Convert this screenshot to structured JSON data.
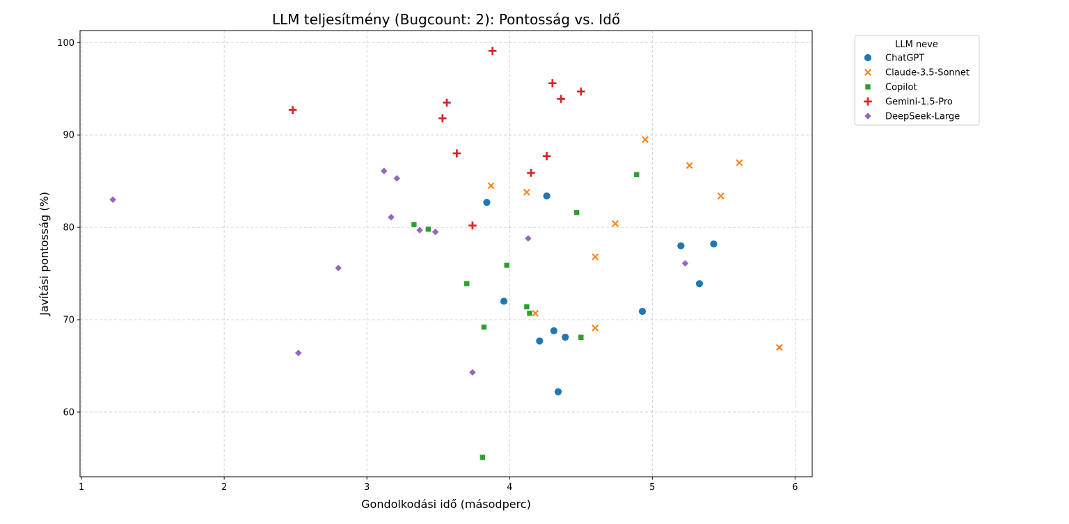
{
  "chart_data": {
    "type": "scatter",
    "title": "LLM teljesítmény (Bugcount: 2): Pontosság vs. Idő",
    "xlabel": "Gondolkodási idő (másodperc)",
    "ylabel": "Javítási pontosság (%)",
    "xlim": [
      0.99,
      6.12
    ],
    "ylim": [
      53.0,
      101.3
    ],
    "xticks": [
      1,
      2,
      3,
      4,
      5,
      6
    ],
    "yticks": [
      60,
      70,
      80,
      90,
      100
    ],
    "grid": true,
    "legend": {
      "title": "LLM neve",
      "placement": "outside top-right"
    },
    "series": [
      {
        "name": "ChatGPT",
        "marker": "circle",
        "color": "#1f77b4",
        "points": [
          [
            3.84,
            82.7
          ],
          [
            4.26,
            83.4
          ],
          [
            3.96,
            72.0
          ],
          [
            4.21,
            67.7
          ],
          [
            4.31,
            68.8
          ],
          [
            4.39,
            68.1
          ],
          [
            4.34,
            62.2
          ],
          [
            4.93,
            70.9
          ],
          [
            5.2,
            78.0
          ],
          [
            5.43,
            78.2
          ],
          [
            5.33,
            73.9
          ]
        ]
      },
      {
        "name": "Claude-3.5-Sonnet",
        "marker": "x",
        "color": "#ff7f0e",
        "points": [
          [
            3.87,
            84.5
          ],
          [
            4.12,
            83.8
          ],
          [
            4.18,
            70.7
          ],
          [
            4.6,
            76.8
          ],
          [
            4.6,
            69.1
          ],
          [
            4.74,
            80.4
          ],
          [
            4.95,
            89.5
          ],
          [
            5.26,
            86.7
          ],
          [
            5.61,
            87.0
          ],
          [
            5.48,
            83.4
          ],
          [
            5.89,
            67.0
          ]
        ]
      },
      {
        "name": "Copilot",
        "marker": "square",
        "color": "#2ca02c",
        "points": [
          [
            3.33,
            80.3
          ],
          [
            3.43,
            79.8
          ],
          [
            3.7,
            73.9
          ],
          [
            3.82,
            69.2
          ],
          [
            3.98,
            75.9
          ],
          [
            4.12,
            71.4
          ],
          [
            4.14,
            70.7
          ],
          [
            4.47,
            81.6
          ],
          [
            4.5,
            68.1
          ],
          [
            4.89,
            85.7
          ],
          [
            3.81,
            55.1
          ]
        ]
      },
      {
        "name": "Gemini-1.5-Pro",
        "marker": "plus",
        "color": "#d62728",
        "points": [
          [
            2.48,
            92.7
          ],
          [
            3.53,
            91.8
          ],
          [
            3.56,
            93.5
          ],
          [
            3.63,
            88.0
          ],
          [
            3.74,
            80.2
          ],
          [
            3.88,
            99.1
          ],
          [
            4.15,
            85.9
          ],
          [
            4.26,
            87.7
          ],
          [
            4.3,
            95.6
          ],
          [
            4.36,
            93.9
          ],
          [
            4.5,
            94.7
          ]
        ]
      },
      {
        "name": "DeepSeek-Large",
        "marker": "diamond",
        "color": "#9467bd",
        "points": [
          [
            1.22,
            83.0
          ],
          [
            2.52,
            66.4
          ],
          [
            2.8,
            75.6
          ],
          [
            3.12,
            86.1
          ],
          [
            3.21,
            85.3
          ],
          [
            3.17,
            81.1
          ],
          [
            3.37,
            79.7
          ],
          [
            3.48,
            79.5
          ],
          [
            3.74,
            64.3
          ],
          [
            4.13,
            78.8
          ],
          [
            5.23,
            76.1
          ]
        ]
      }
    ]
  }
}
